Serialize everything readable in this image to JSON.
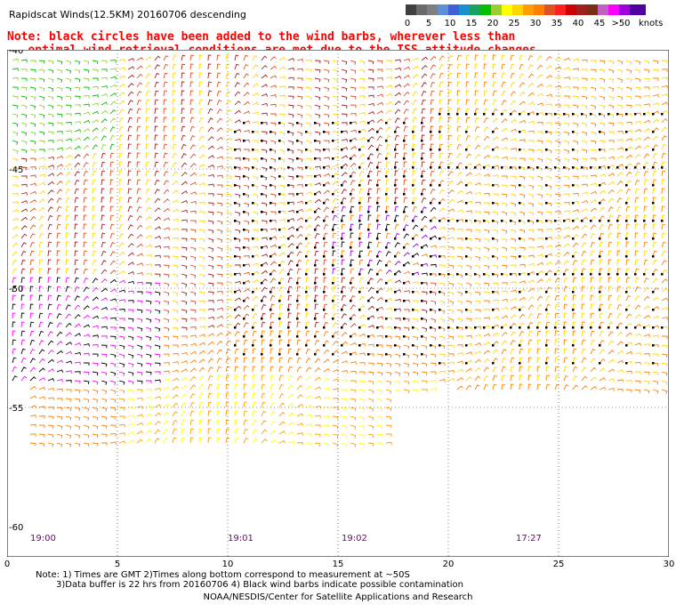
{
  "title": "Rapidscat Winds(12.5KM) 20160706 descending",
  "note_lines": [
    "Note: black circles have been added to the wind barbs, wherever less than",
    "optimal wind retrieval conditions are met due to the ISS attitude changes"
  ],
  "legend": {
    "swatch_colors": [
      "#404040",
      "#6a6a6a",
      "#7f7f7f",
      "#5b8fd6",
      "#3f5fd6",
      "#1a8fd0",
      "#1aa060",
      "#00c000",
      "#9acd32",
      "#ffff00",
      "#ffd700",
      "#ffa000",
      "#ff8000",
      "#e05020",
      "#ff2020",
      "#d00000",
      "#a02020",
      "#7a3010",
      "#c060c0",
      "#ff00ff",
      "#a000e0",
      "#5000a0"
    ],
    "ticks": [
      "0",
      "5",
      "10",
      "15",
      "20",
      "25",
      "30",
      "35",
      "40",
      "45",
      ">50"
    ],
    "units": "knots"
  },
  "map": {
    "x_ticks": [
      "0",
      "5",
      "10",
      "15",
      "20",
      "25",
      "30"
    ],
    "y_ticks": [
      "-40",
      "-45",
      "-50",
      "-55",
      "-60"
    ],
    "time_labels": [
      "19:00",
      "19:01",
      "19:02",
      "17:27"
    ],
    "time_label_color": "#800080"
  },
  "footer": {
    "line1": "Note: 1) Times are GMT 2)Times along bottom correspond to measurement at ~50S",
    "line2": "3)Data buffer is 22 hrs from 20160706 4) Black wind barbs indicate possible contamination",
    "line3": "NOAA/NESDIS/Center for Satellite Applications and Research"
  }
}
